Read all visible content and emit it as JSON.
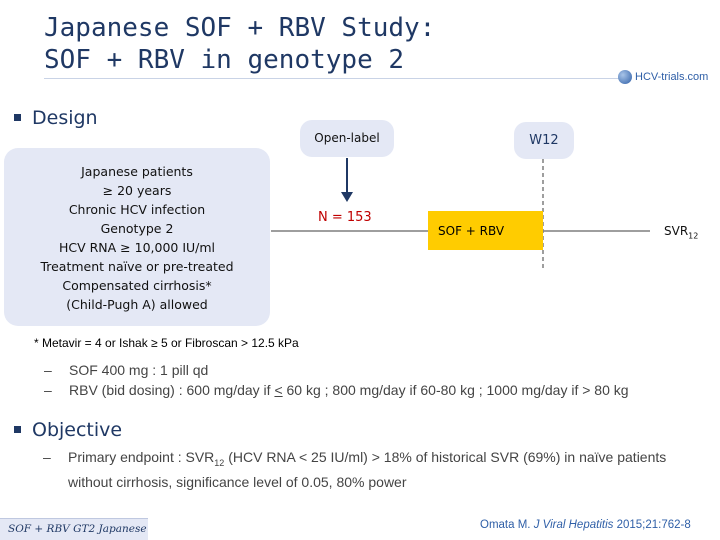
{
  "title": {
    "line1": "Japanese SOF + RBV Study:",
    "line2": "SOF + RBV in genotype 2"
  },
  "logo": {
    "text": "HCV-trials.com",
    "icon": "globe-icon"
  },
  "design": {
    "heading": "Design",
    "patients": [
      "Japanese patients",
      "≥ 20 years",
      "Chronic HCV infection",
      "Genotype 2",
      "HCV RNA ≥ 10,000 IU/ml",
      "Treatment naïve or pre-treated",
      "Compensated cirrhosis*",
      "(Child-Pugh A) allowed"
    ],
    "open_label": "Open-label",
    "week_marker": "W12",
    "n": "N = 153",
    "arm": "SOF + RBV",
    "svr_main": "SVR",
    "svr_sub": "12",
    "footnote": "* Metavir = 4 or Ishak ≥ 5 or Fibroscan > 12.5 kPa",
    "dose_dash": "–",
    "dose_sof": "SOF 400 mg : 1 pill qd",
    "dose_rbv_a": "RBV (bid dosing) : 600 mg/day if ",
    "dose_rbv_u": "<",
    "dose_rbv_b": " 60 kg ; 800 mg/day if 60-80 kg ; 1000 mg/day if > 80 kg"
  },
  "objective": {
    "heading": "Objective",
    "dash": "–",
    "text_a": "Primary endpoint : SVR",
    "text_sub": "12",
    "text_b": " (HCV RNA < 25 IU/ml) > 18% of historical SVR (69%) in naïve patients without cirrhosis, significance level of 0.05, 80% power"
  },
  "footer": {
    "tag": "SOF + RBV GT2 Japanese",
    "citation_a": "Omata M. ",
    "citation_journal": "J Viral Hepatitis",
    "citation_b": " 2015;21:762-8"
  },
  "colors": {
    "title": "#1f3864",
    "box_fill": "#e4e8f5",
    "arm_fill": "#ffcc00",
    "n_label": "#c00000",
    "arrow": "#1f3864"
  }
}
